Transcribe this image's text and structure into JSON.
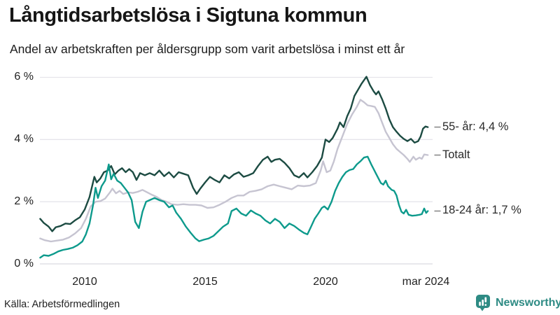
{
  "header": {
    "title": "Långtidsarbetslösa i Sigtuna kommun",
    "subtitle": "Andel av arbetskraften per åldersgrupp som varit arbetslösa i minst ett år"
  },
  "footer": {
    "source": "Källa: Arbetsförmedlingen",
    "brand": "Newsworthy"
  },
  "colors": {
    "background": "#ffffff",
    "gridline": "#e6e5eb",
    "baseline": "#d9d9e0",
    "label_dash": "#8a8a8a",
    "text": "#1a1a1a",
    "brand_teal": "#2e8b84"
  },
  "chart_data": {
    "type": "line",
    "title": "Långtidsarbetslösa i Sigtuna kommun",
    "subtitle": "Andel av arbetskraften per åldersgrupp som varit arbetslösa i minst ett år",
    "x_unit": "year (monthly data, 2008 – mar 2024)",
    "ylim": [
      0,
      6
    ],
    "grid": true,
    "legend_position": "end-of-line labels, right side",
    "y_ticks": [
      {
        "value": 0,
        "label": "0 %"
      },
      {
        "value": 2,
        "label": "2 %"
      },
      {
        "value": 4,
        "label": "4 %"
      },
      {
        "value": 6,
        "label": "6 %"
      }
    ],
    "x_ticks": [
      {
        "value": 2010,
        "label": "2010"
      },
      {
        "value": 2015,
        "label": "2015"
      },
      {
        "value": 2020,
        "label": "2020"
      },
      {
        "value": 2024.17,
        "label": "mar 2024"
      }
    ],
    "layout": {
      "draw_order": [
        1,
        0,
        2
      ]
    },
    "series": [
      {
        "name": "55- år",
        "end_label": "55- år: 4,4 %",
        "end_value_label": "4,4 %",
        "color": "#1c4b42",
        "points": [
          [
            2008.15,
            1.45
          ],
          [
            2008.3,
            1.32
          ],
          [
            2008.5,
            1.2
          ],
          [
            2008.65,
            1.05
          ],
          [
            2008.8,
            1.18
          ],
          [
            2009.0,
            1.22
          ],
          [
            2009.2,
            1.3
          ],
          [
            2009.4,
            1.28
          ],
          [
            2009.6,
            1.4
          ],
          [
            2009.8,
            1.5
          ],
          [
            2010.0,
            1.75
          ],
          [
            2010.2,
            2.15
          ],
          [
            2010.4,
            2.8
          ],
          [
            2010.5,
            2.62
          ],
          [
            2010.65,
            2.75
          ],
          [
            2010.8,
            2.95
          ],
          [
            2010.95,
            3.0
          ],
          [
            2011.1,
            3.15
          ],
          [
            2011.25,
            2.88
          ],
          [
            2011.4,
            3.0
          ],
          [
            2011.55,
            3.08
          ],
          [
            2011.7,
            2.95
          ],
          [
            2011.85,
            3.05
          ],
          [
            2012.0,
            2.95
          ],
          [
            2012.15,
            2.7
          ],
          [
            2012.3,
            2.92
          ],
          [
            2012.5,
            2.85
          ],
          [
            2012.7,
            2.92
          ],
          [
            2012.9,
            2.85
          ],
          [
            2013.1,
            3.0
          ],
          [
            2013.3,
            2.82
          ],
          [
            2013.5,
            2.95
          ],
          [
            2013.7,
            2.78
          ],
          [
            2013.9,
            2.95
          ],
          [
            2014.1,
            2.9
          ],
          [
            2014.3,
            2.85
          ],
          [
            2014.5,
            2.45
          ],
          [
            2014.65,
            2.25
          ],
          [
            2014.8,
            2.42
          ],
          [
            2015.0,
            2.62
          ],
          [
            2015.2,
            2.8
          ],
          [
            2015.4,
            2.7
          ],
          [
            2015.6,
            2.62
          ],
          [
            2015.8,
            2.85
          ],
          [
            2016.0,
            2.75
          ],
          [
            2016.2,
            2.88
          ],
          [
            2016.4,
            2.95
          ],
          [
            2016.6,
            2.8
          ],
          [
            2016.8,
            2.85
          ],
          [
            2017.0,
            2.92
          ],
          [
            2017.2,
            3.15
          ],
          [
            2017.4,
            3.35
          ],
          [
            2017.6,
            3.45
          ],
          [
            2017.75,
            3.28
          ],
          [
            2017.9,
            3.35
          ],
          [
            2018.1,
            3.38
          ],
          [
            2018.3,
            3.25
          ],
          [
            2018.5,
            3.08
          ],
          [
            2018.7,
            2.85
          ],
          [
            2018.9,
            2.78
          ],
          [
            2019.1,
            2.92
          ],
          [
            2019.25,
            2.78
          ],
          [
            2019.45,
            2.95
          ],
          [
            2019.65,
            3.15
          ],
          [
            2019.85,
            3.42
          ],
          [
            2020.0,
            4.0
          ],
          [
            2020.15,
            3.92
          ],
          [
            2020.3,
            4.05
          ],
          [
            2020.5,
            4.35
          ],
          [
            2020.6,
            4.55
          ],
          [
            2020.75,
            4.4
          ],
          [
            2020.9,
            4.75
          ],
          [
            2021.05,
            5.0
          ],
          [
            2021.2,
            5.4
          ],
          [
            2021.35,
            5.6
          ],
          [
            2021.5,
            5.8
          ],
          [
            2021.7,
            6.02
          ],
          [
            2021.85,
            5.75
          ],
          [
            2022.0,
            5.55
          ],
          [
            2022.1,
            5.45
          ],
          [
            2022.2,
            5.55
          ],
          [
            2022.35,
            5.3
          ],
          [
            2022.5,
            5.0
          ],
          [
            2022.65,
            4.65
          ],
          [
            2022.8,
            4.4
          ],
          [
            2022.95,
            4.25
          ],
          [
            2023.1,
            4.12
          ],
          [
            2023.25,
            4.02
          ],
          [
            2023.4,
            3.95
          ],
          [
            2023.55,
            4.02
          ],
          [
            2023.7,
            3.9
          ],
          [
            2023.85,
            3.95
          ],
          [
            2023.95,
            4.1
          ],
          [
            2024.05,
            4.35
          ],
          [
            2024.15,
            4.42
          ],
          [
            2024.25,
            4.4
          ]
        ]
      },
      {
        "name": "Totalt",
        "end_label": "Totalt",
        "end_value_label": "",
        "color": "#c6c4d1",
        "points": [
          [
            2008.15,
            0.82
          ],
          [
            2008.35,
            0.76
          ],
          [
            2008.6,
            0.72
          ],
          [
            2008.85,
            0.75
          ],
          [
            2009.1,
            0.78
          ],
          [
            2009.35,
            0.85
          ],
          [
            2009.6,
            0.98
          ],
          [
            2009.85,
            1.15
          ],
          [
            2010.05,
            1.45
          ],
          [
            2010.25,
            1.85
          ],
          [
            2010.45,
            2.0
          ],
          [
            2010.65,
            2.02
          ],
          [
            2010.85,
            2.1
          ],
          [
            2011.05,
            2.3
          ],
          [
            2011.15,
            2.42
          ],
          [
            2011.3,
            2.27
          ],
          [
            2011.45,
            2.35
          ],
          [
            2011.6,
            2.25
          ],
          [
            2011.8,
            2.3
          ],
          [
            2012.0,
            2.28
          ],
          [
            2012.2,
            2.32
          ],
          [
            2012.4,
            2.38
          ],
          [
            2012.6,
            2.3
          ],
          [
            2012.8,
            2.22
          ],
          [
            2013.0,
            2.15
          ],
          [
            2013.2,
            2.05
          ],
          [
            2013.4,
            2.0
          ],
          [
            2013.6,
            1.92
          ],
          [
            2013.85,
            1.9
          ],
          [
            2014.1,
            1.92
          ],
          [
            2014.35,
            1.9
          ],
          [
            2014.6,
            1.9
          ],
          [
            2014.85,
            1.88
          ],
          [
            2015.1,
            1.8
          ],
          [
            2015.35,
            1.82
          ],
          [
            2015.6,
            1.9
          ],
          [
            2015.85,
            2.0
          ],
          [
            2016.1,
            2.12
          ],
          [
            2016.35,
            2.2
          ],
          [
            2016.6,
            2.2
          ],
          [
            2016.85,
            2.32
          ],
          [
            2017.1,
            2.35
          ],
          [
            2017.35,
            2.4
          ],
          [
            2017.6,
            2.5
          ],
          [
            2017.85,
            2.55
          ],
          [
            2018.1,
            2.5
          ],
          [
            2018.35,
            2.45
          ],
          [
            2018.6,
            2.4
          ],
          [
            2018.85,
            2.52
          ],
          [
            2019.1,
            2.5
          ],
          [
            2019.35,
            2.52
          ],
          [
            2019.6,
            2.6
          ],
          [
            2019.8,
            3.0
          ],
          [
            2019.9,
            3.3
          ],
          [
            2020.05,
            2.95
          ],
          [
            2020.2,
            3.0
          ],
          [
            2020.35,
            3.3
          ],
          [
            2020.5,
            3.7
          ],
          [
            2020.7,
            4.1
          ],
          [
            2020.9,
            4.5
          ],
          [
            2021.1,
            4.8
          ],
          [
            2021.3,
            5.05
          ],
          [
            2021.45,
            5.28
          ],
          [
            2021.6,
            5.2
          ],
          [
            2021.75,
            5.1
          ],
          [
            2021.9,
            5.08
          ],
          [
            2022.05,
            5.05
          ],
          [
            2022.2,
            4.85
          ],
          [
            2022.35,
            4.55
          ],
          [
            2022.5,
            4.25
          ],
          [
            2022.65,
            4.05
          ],
          [
            2022.8,
            3.85
          ],
          [
            2022.95,
            3.7
          ],
          [
            2023.1,
            3.6
          ],
          [
            2023.25,
            3.5
          ],
          [
            2023.4,
            3.38
          ],
          [
            2023.5,
            3.28
          ],
          [
            2023.65,
            3.45
          ],
          [
            2023.75,
            3.35
          ],
          [
            2023.9,
            3.42
          ],
          [
            2024.0,
            3.38
          ],
          [
            2024.1,
            3.52
          ],
          [
            2024.25,
            3.5
          ]
        ]
      },
      {
        "name": "18-24 år",
        "end_label": "18-24 år: 1,7 %",
        "end_value_label": "1,7 %",
        "color": "#0d9a8c",
        "points": [
          [
            2008.15,
            0.2
          ],
          [
            2008.3,
            0.28
          ],
          [
            2008.5,
            0.26
          ],
          [
            2008.7,
            0.32
          ],
          [
            2008.9,
            0.4
          ],
          [
            2009.1,
            0.45
          ],
          [
            2009.3,
            0.48
          ],
          [
            2009.5,
            0.52
          ],
          [
            2009.7,
            0.6
          ],
          [
            2009.9,
            0.72
          ],
          [
            2010.05,
            0.95
          ],
          [
            2010.2,
            1.3
          ],
          [
            2010.35,
            1.9
          ],
          [
            2010.45,
            2.45
          ],
          [
            2010.55,
            2.12
          ],
          [
            2010.7,
            2.5
          ],
          [
            2010.85,
            2.68
          ],
          [
            2011.0,
            3.2
          ],
          [
            2011.1,
            2.72
          ],
          [
            2011.2,
            2.9
          ],
          [
            2011.35,
            2.68
          ],
          [
            2011.5,
            2.6
          ],
          [
            2011.65,
            2.45
          ],
          [
            2011.8,
            2.3
          ],
          [
            2011.95,
            2.05
          ],
          [
            2012.1,
            1.35
          ],
          [
            2012.25,
            1.15
          ],
          [
            2012.4,
            1.68
          ],
          [
            2012.55,
            2.0
          ],
          [
            2012.7,
            2.05
          ],
          [
            2012.9,
            2.12
          ],
          [
            2013.1,
            2.05
          ],
          [
            2013.3,
            2.0
          ],
          [
            2013.5,
            1.82
          ],
          [
            2013.65,
            1.88
          ],
          [
            2013.8,
            1.65
          ],
          [
            2014.0,
            1.45
          ],
          [
            2014.2,
            1.2
          ],
          [
            2014.4,
            1.0
          ],
          [
            2014.6,
            0.82
          ],
          [
            2014.75,
            0.73
          ],
          [
            2014.95,
            0.78
          ],
          [
            2015.15,
            0.82
          ],
          [
            2015.35,
            0.9
          ],
          [
            2015.55,
            1.05
          ],
          [
            2015.75,
            1.2
          ],
          [
            2015.95,
            1.3
          ],
          [
            2016.1,
            1.7
          ],
          [
            2016.3,
            1.78
          ],
          [
            2016.5,
            1.62
          ],
          [
            2016.7,
            1.55
          ],
          [
            2016.9,
            1.72
          ],
          [
            2017.1,
            1.62
          ],
          [
            2017.3,
            1.55
          ],
          [
            2017.5,
            1.4
          ],
          [
            2017.7,
            1.3
          ],
          [
            2017.9,
            1.45
          ],
          [
            2018.1,
            1.35
          ],
          [
            2018.3,
            1.15
          ],
          [
            2018.5,
            1.3
          ],
          [
            2018.7,
            1.22
          ],
          [
            2018.9,
            1.1
          ],
          [
            2019.1,
            1.0
          ],
          [
            2019.25,
            0.95
          ],
          [
            2019.4,
            1.2
          ],
          [
            2019.55,
            1.45
          ],
          [
            2019.7,
            1.62
          ],
          [
            2019.85,
            1.8
          ],
          [
            2019.95,
            1.85
          ],
          [
            2020.1,
            1.75
          ],
          [
            2020.25,
            2.0
          ],
          [
            2020.4,
            2.35
          ],
          [
            2020.55,
            2.6
          ],
          [
            2020.7,
            2.8
          ],
          [
            2020.85,
            2.95
          ],
          [
            2021.0,
            3.02
          ],
          [
            2021.15,
            3.05
          ],
          [
            2021.3,
            3.2
          ],
          [
            2021.45,
            3.3
          ],
          [
            2021.6,
            3.42
          ],
          [
            2021.75,
            3.45
          ],
          [
            2021.9,
            3.2
          ],
          [
            2022.0,
            3.05
          ],
          [
            2022.1,
            2.9
          ],
          [
            2022.2,
            2.75
          ],
          [
            2022.3,
            2.6
          ],
          [
            2022.4,
            2.55
          ],
          [
            2022.5,
            2.68
          ],
          [
            2022.6,
            2.5
          ],
          [
            2022.75,
            2.38
          ],
          [
            2022.85,
            2.35
          ],
          [
            2022.95,
            2.2
          ],
          [
            2023.05,
            1.9
          ],
          [
            2023.15,
            1.68
          ],
          [
            2023.25,
            1.62
          ],
          [
            2023.35,
            1.74
          ],
          [
            2023.45,
            1.58
          ],
          [
            2023.6,
            1.55
          ],
          [
            2023.75,
            1.56
          ],
          [
            2023.9,
            1.58
          ],
          [
            2024.0,
            1.6
          ],
          [
            2024.1,
            1.78
          ],
          [
            2024.18,
            1.64
          ],
          [
            2024.25,
            1.7
          ]
        ]
      }
    ]
  }
}
